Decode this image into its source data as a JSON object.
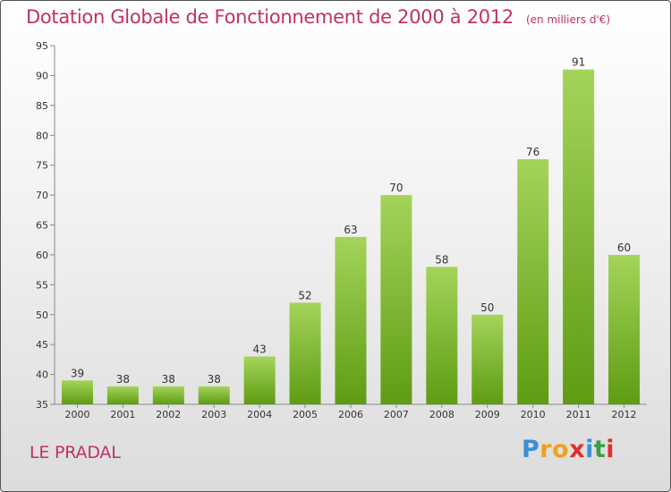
{
  "header": {
    "title": "Dotation Globale de Fonctionnement de 2000 à 2012",
    "subtitle": "(en milliers d'€)"
  },
  "footer": {
    "commune": "LE PRADAL",
    "logo": {
      "letters": [
        "P",
        "r",
        "o",
        "x",
        "i",
        "t",
        "i"
      ],
      "colors": [
        "#3a8fd6",
        "#f0a020",
        "#f0a020",
        "#e03030",
        "#3a8fd6",
        "#3aa040",
        "#e03030"
      ]
    }
  },
  "chart_data": {
    "type": "bar",
    "title": "Dotation Globale de Fonctionnement de 2000 à 2012",
    "subtitle": "(en milliers d'€)",
    "categories": [
      "2000",
      "2001",
      "2002",
      "2003",
      "2004",
      "2005",
      "2006",
      "2007",
      "2008",
      "2009",
      "2010",
      "2011",
      "2012"
    ],
    "values": [
      39,
      38,
      38,
      38,
      43,
      52,
      63,
      70,
      58,
      50,
      76,
      91,
      60
    ],
    "data_labels": [
      "39",
      "38",
      "38",
      "38",
      "43",
      "52",
      "63",
      "70",
      "58",
      "50",
      "76",
      "91",
      "60"
    ],
    "ylim": [
      35,
      95
    ],
    "yticks": [
      35,
      40,
      45,
      50,
      55,
      60,
      65,
      70,
      75,
      80,
      85,
      90,
      95
    ],
    "ytick_labels": [
      "35",
      "40",
      "45",
      "50",
      "55",
      "60",
      "65",
      "70",
      "75",
      "80",
      "85",
      "90",
      "95"
    ],
    "grid": false,
    "bar_color_top": "#a4d45a",
    "bar_color_bottom": "#5e9c12",
    "axis_color": "#888888"
  }
}
